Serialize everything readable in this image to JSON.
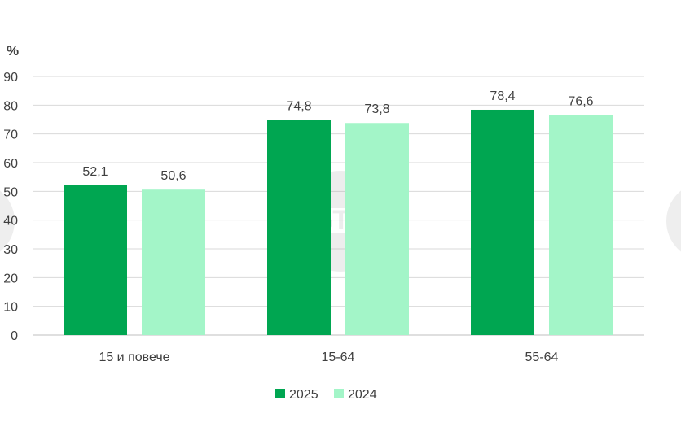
{
  "chart_data": {
    "type": "bar",
    "title": "",
    "xlabel": "",
    "ylabel": "%",
    "ylim": [
      0,
      90
    ],
    "yticks": [
      0,
      10,
      20,
      30,
      40,
      50,
      60,
      70,
      80,
      90
    ],
    "grid": true,
    "legend_position": "bottom",
    "categories": [
      "15 и повече",
      "15-64",
      "55-64"
    ],
    "series": [
      {
        "name": "2025",
        "color": "#00a651",
        "values": [
          52.1,
          74.8,
          78.4
        ],
        "labels": [
          "52,1",
          "74,8",
          "78,4"
        ]
      },
      {
        "name": "2024",
        "color": "#a3f5c8",
        "values": [
          50.6,
          73.8,
          76.6
        ],
        "labels": [
          "50,6",
          "73,8",
          "76,6"
        ]
      }
    ]
  },
  "watermark": {
    "text": "БТА"
  }
}
